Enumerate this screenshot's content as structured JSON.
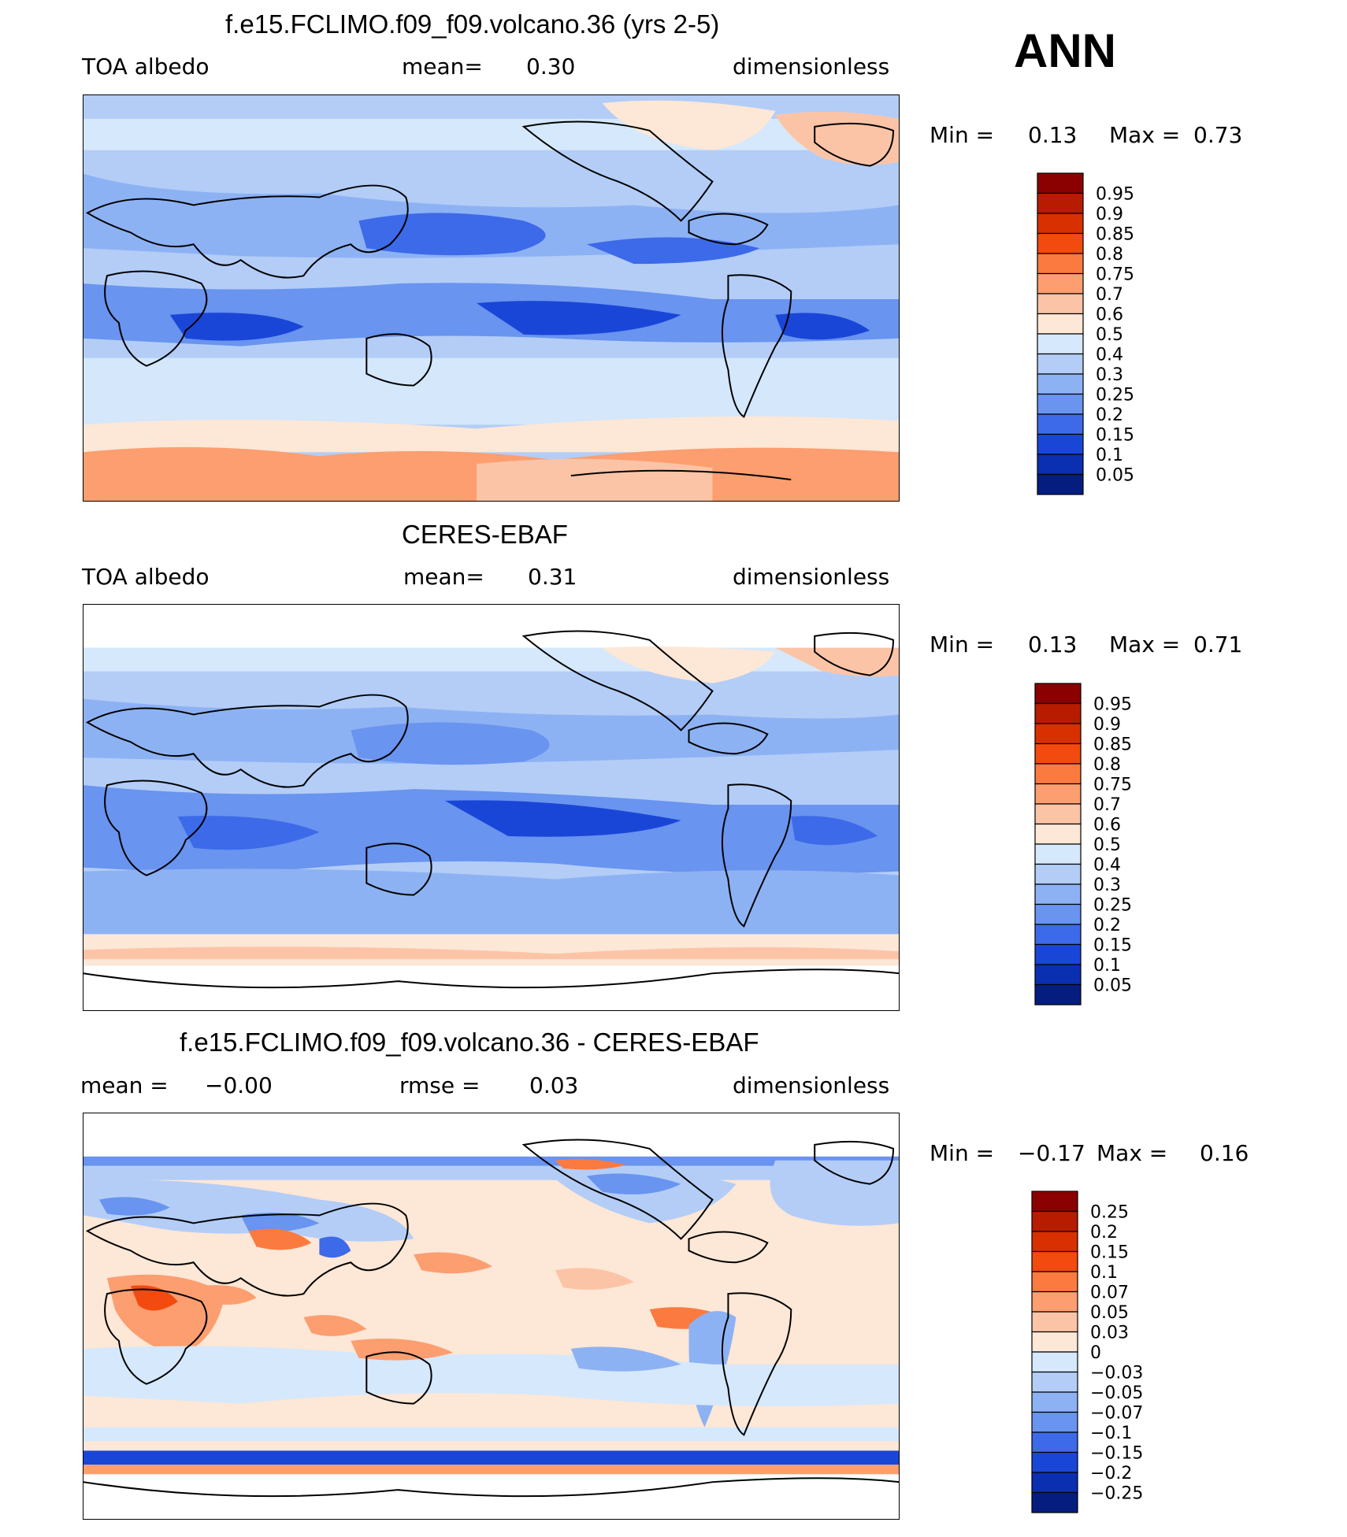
{
  "season": "ANN",
  "panels": [
    {
      "title": "f.e15.FCLIMO.f09_f09.volcano.36 (yrs 2-5)",
      "left": "TOA albedo",
      "center_label": "mean=",
      "center_value": "0.30",
      "right": "dimensionless",
      "min_label": "Min =",
      "min_value": "0.13",
      "max_label": "Max =",
      "max_value": "0.73"
    },
    {
      "title": "CERES-EBAF",
      "left": "TOA albedo",
      "center_label": "mean=",
      "center_value": "0.31",
      "right": "dimensionless",
      "min_label": "Min =",
      "min_value": "0.13",
      "max_label": "Max =",
      "max_value": "0.71"
    },
    {
      "title": "f.e15.FCLIMO.f09_f09.volcano.36 - CERES-EBAF",
      "left_label": "mean =",
      "left_value": "−0.00",
      "center_label": "rmse =",
      "center_value": "0.03",
      "right": "dimensionless",
      "min_label": "Min =",
      "min_value": "−0.17",
      "max_label": "Max =",
      "max_value": "0.16"
    }
  ],
  "chart_data": [
    {
      "type": "heatmap",
      "title": "f.e15.FCLIMO.f09_f09.volcano.36 (yrs 2-5)",
      "variable": "TOA albedo",
      "units": "dimensionless",
      "mean": 0.3,
      "min": 0.13,
      "max": 0.73,
      "colorbar_levels": [
        "0.95",
        "0.9",
        "0.85",
        "0.8",
        "0.75",
        "0.7",
        "0.6",
        "0.5",
        "0.4",
        "0.3",
        "0.25",
        "0.2",
        "0.15",
        "0.1",
        "0.05"
      ],
      "colorbar_colors": [
        "#8b0000",
        "#b71c00",
        "#d93000",
        "#f34a10",
        "#fb7a40",
        "#fc9e70",
        "#fcc4a6",
        "#fde7d6",
        "#d6e8fb",
        "#b3cdf7",
        "#8db2f4",
        "#6994ef",
        "#3d6ae8",
        "#1a46d8",
        "#0a2fb0",
        "#061d80"
      ]
    },
    {
      "type": "heatmap",
      "title": "CERES-EBAF",
      "variable": "TOA albedo",
      "units": "dimensionless",
      "mean": 0.31,
      "min": 0.13,
      "max": 0.71,
      "colorbar_levels": [
        "0.95",
        "0.9",
        "0.85",
        "0.8",
        "0.75",
        "0.7",
        "0.6",
        "0.5",
        "0.4",
        "0.3",
        "0.25",
        "0.2",
        "0.15",
        "0.1",
        "0.05"
      ],
      "colorbar_colors": [
        "#8b0000",
        "#b71c00",
        "#d93000",
        "#f34a10",
        "#fb7a40",
        "#fc9e70",
        "#fcc4a6",
        "#fde7d6",
        "#d6e8fb",
        "#b3cdf7",
        "#8db2f4",
        "#6994ef",
        "#3d6ae8",
        "#1a46d8",
        "#0a2fb0",
        "#061d80"
      ]
    },
    {
      "type": "heatmap",
      "title": "f.e15.FCLIMO.f09_f09.volcano.36 - CERES-EBAF",
      "units": "dimensionless",
      "mean": -0.0,
      "rmse": 0.03,
      "min": -0.17,
      "max": 0.16,
      "colorbar_levels": [
        "0.25",
        "0.2",
        "0.15",
        "0.1",
        "0.07",
        "0.05",
        "0.03",
        "0",
        "−0.03",
        "−0.05",
        "−0.07",
        "−0.1",
        "−0.15",
        "−0.2",
        "−0.25"
      ],
      "colorbar_colors": [
        "#8b0000",
        "#b71c00",
        "#d93000",
        "#f34a10",
        "#fb7a40",
        "#fc9e70",
        "#fcc4a6",
        "#fde7d6",
        "#d6e8fb",
        "#b3cdf7",
        "#8db2f4",
        "#6994ef",
        "#3d6ae8",
        "#1a46d8",
        "#0a2fb0",
        "#061d80"
      ]
    }
  ]
}
